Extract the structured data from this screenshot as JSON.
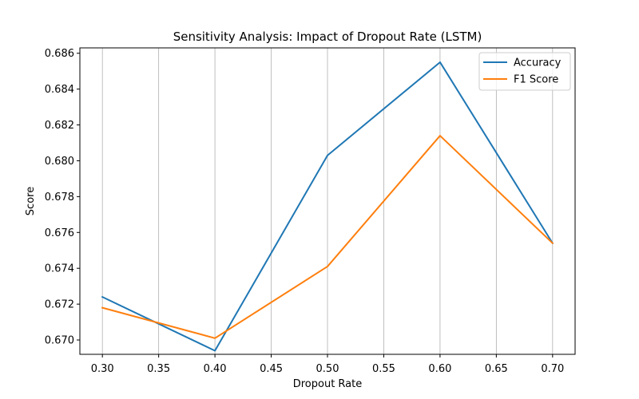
{
  "chart_data": {
    "type": "line",
    "title": "Sensitivity Analysis: Impact of Dropout Rate (LSTM)",
    "xlabel": "Dropout Rate",
    "ylabel": "Score",
    "x": [
      0.3,
      0.4,
      0.5,
      0.6,
      0.7
    ],
    "x_ticks": [
      "0.30",
      "0.35",
      "0.40",
      "0.45",
      "0.50",
      "0.55",
      "0.60",
      "0.65",
      "0.70"
    ],
    "y_ticks": [
      "0.670",
      "0.672",
      "0.674",
      "0.676",
      "0.678",
      "0.680",
      "0.682",
      "0.684",
      "0.686"
    ],
    "xlim": [
      0.28,
      0.72
    ],
    "ylim": [
      0.6692,
      0.6863
    ],
    "grid": "vertical",
    "legend_position": "top-right",
    "series": [
      {
        "name": "Accuracy",
        "color": "#1f77b4",
        "values": [
          0.6724,
          0.6694,
          0.6803,
          0.6855,
          0.6754
        ]
      },
      {
        "name": "F1 Score",
        "color": "#ff7f0e",
        "values": [
          0.6718,
          0.6701,
          0.6741,
          0.6814,
          0.6754
        ]
      }
    ]
  }
}
